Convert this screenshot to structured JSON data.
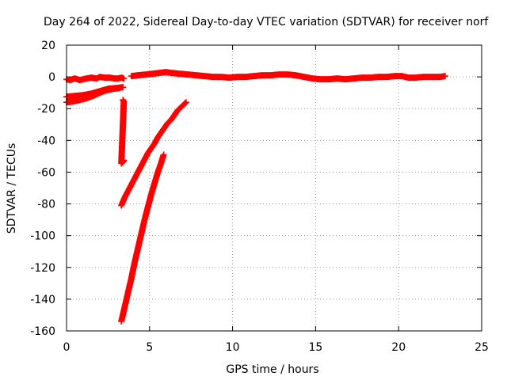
{
  "chart_data": {
    "type": "scatter",
    "title": "Day 264 of 2022, Sidereal Day-to-day VTEC variation (SDTVAR) for receiver norf",
    "xlabel": "GPS time / hours",
    "ylabel": "SDTVAR / TECUs",
    "xlim": [
      0,
      25
    ],
    "ylim": [
      -160,
      20
    ],
    "xticks": [
      0,
      5,
      10,
      15,
      20,
      25
    ],
    "yticks": [
      20,
      0,
      -20,
      -40,
      -60,
      -80,
      -100,
      -120,
      -140,
      -160
    ],
    "grid": true,
    "marker": "plus",
    "color": "#ff0000",
    "series": [
      {
        "points": [
          [
            0.0,
            -1.5
          ],
          [
            0.2,
            -2
          ],
          [
            0.5,
            -1
          ],
          [
            0.8,
            -2
          ],
          [
            1.0,
            -1.5
          ],
          [
            1.2,
            -1
          ],
          [
            1.5,
            -0.5
          ],
          [
            1.8,
            -1
          ],
          [
            2.0,
            0
          ],
          [
            2.3,
            -0.5
          ],
          [
            2.6,
            -0.5
          ],
          [
            2.9,
            -1
          ],
          [
            3.1,
            -1
          ],
          [
            3.3,
            -0.5
          ],
          [
            3.45,
            -1
          ]
        ]
      },
      {
        "points": [
          [
            3.4,
            -14.5
          ],
          [
            3.45,
            -15.5
          ],
          [
            3.3,
            -54.5
          ],
          [
            3.4,
            -53.5
          ],
          [
            3.45,
            -52.5
          ]
        ]
      },
      {
        "points": [
          [
            0.0,
            -12.5
          ],
          [
            0.5,
            -12
          ],
          [
            1.0,
            -11.5
          ],
          [
            1.5,
            -10.5
          ],
          [
            2.0,
            -9
          ],
          [
            2.5,
            -7.5
          ],
          [
            3.0,
            -7
          ],
          [
            3.4,
            -6.5
          ]
        ]
      },
      {
        "points": [
          [
            0.0,
            -16
          ],
          [
            0.4,
            -15.5
          ],
          [
            0.8,
            -14.5
          ],
          [
            1.2,
            -13.5
          ],
          [
            1.6,
            -12
          ],
          [
            2.0,
            -10
          ],
          [
            2.4,
            -8.5
          ],
          [
            2.8,
            -7.5
          ],
          [
            3.2,
            -7
          ]
        ]
      },
      {
        "points": [
          [
            3.9,
            0.5
          ],
          [
            4.3,
            1
          ],
          [
            4.8,
            1.5
          ],
          [
            5.2,
            2
          ],
          [
            5.6,
            2.5
          ],
          [
            6.0,
            3
          ],
          [
            6.3,
            2.5
          ],
          [
            6.8,
            2
          ],
          [
            7.3,
            1.5
          ],
          [
            7.8,
            1
          ],
          [
            8.3,
            0.5
          ],
          [
            8.8,
            0
          ],
          [
            9.3,
            0
          ],
          [
            9.8,
            -0.5
          ],
          [
            10.3,
            0
          ],
          [
            10.8,
            0
          ],
          [
            11.3,
            0.5
          ],
          [
            11.8,
            1
          ],
          [
            12.3,
            1
          ],
          [
            12.8,
            1.5
          ],
          [
            13.3,
            1.5
          ],
          [
            13.8,
            1
          ],
          [
            14.3,
            0
          ],
          [
            14.8,
            -1
          ],
          [
            15.3,
            -1.5
          ],
          [
            15.8,
            -1.5
          ],
          [
            16.3,
            -1
          ],
          [
            16.8,
            -1.5
          ],
          [
            17.3,
            -1
          ],
          [
            17.8,
            -0.5
          ],
          [
            18.3,
            -0.5
          ],
          [
            18.8,
            0
          ],
          [
            19.3,
            0
          ],
          [
            19.8,
            0.5
          ],
          [
            20.2,
            0.5
          ],
          [
            20.6,
            -0.5
          ],
          [
            21.0,
            -0.5
          ],
          [
            21.5,
            0
          ],
          [
            22.0,
            0
          ],
          [
            22.5,
            0
          ],
          [
            22.8,
            0.5
          ]
        ]
      },
      {
        "points": [
          [
            3.3,
            -81
          ],
          [
            3.5,
            -76
          ],
          [
            3.7,
            -72
          ],
          [
            3.9,
            -68
          ],
          [
            4.1,
            -64
          ],
          [
            4.3,
            -60
          ],
          [
            4.5,
            -56
          ],
          [
            4.7,
            -52
          ],
          [
            4.9,
            -48
          ],
          [
            5.1,
            -45
          ],
          [
            5.3,
            -42
          ],
          [
            5.5,
            -38
          ],
          [
            5.7,
            -35
          ],
          [
            5.9,
            -32
          ],
          [
            6.1,
            -29
          ],
          [
            6.3,
            -27
          ],
          [
            6.5,
            -24
          ],
          [
            6.7,
            -21
          ],
          [
            6.9,
            -19
          ],
          [
            7.1,
            -17
          ],
          [
            7.2,
            -16
          ]
        ]
      },
      {
        "points": [
          [
            3.3,
            -154
          ],
          [
            3.5,
            -145
          ],
          [
            3.7,
            -136
          ],
          [
            3.9,
            -127
          ],
          [
            4.1,
            -117
          ],
          [
            4.3,
            -108
          ],
          [
            4.5,
            -99
          ],
          [
            4.7,
            -90
          ],
          [
            4.9,
            -82
          ],
          [
            5.1,
            -74
          ],
          [
            5.3,
            -67
          ],
          [
            5.5,
            -60
          ],
          [
            5.7,
            -54
          ],
          [
            5.85,
            -49
          ]
        ]
      }
    ]
  }
}
